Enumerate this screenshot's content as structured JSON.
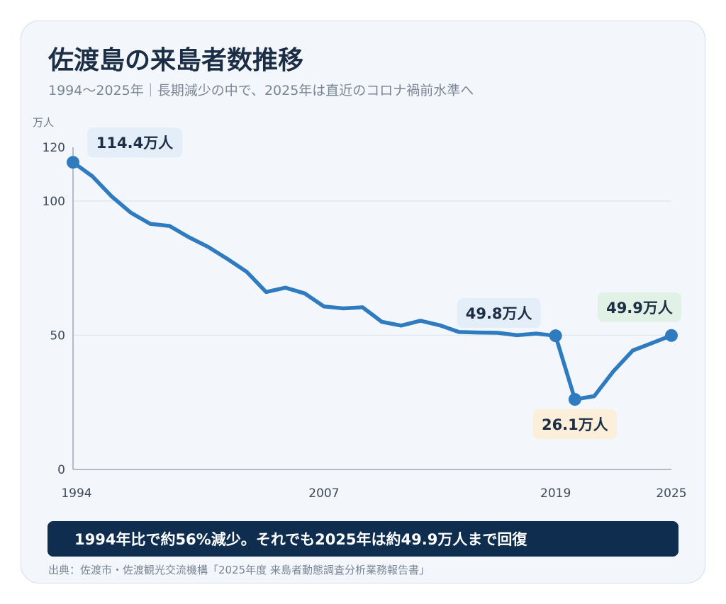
{
  "title": "佐渡島の来島者数推移",
  "subtitle": "1994〜2025年｜長期減少の中で、2025年は直近のコロナ禍前水準へ",
  "banner": "1994年比で約56%減少。それでも2025年は約49.9万人まで回復",
  "source": "出典：佐渡市・佐渡観光交流機構「2025年度 来島者動態調査分析業務報告書」",
  "colors": {
    "line": "#2f7bbf",
    "axis": "#9aa8b8",
    "grid": "#dde4ec",
    "banner_bg": "#0f2d4f",
    "callout_blue": "#e3eef8",
    "callout_orange": "#fcefd9",
    "callout_green": "#e2f1e6"
  },
  "chart_data": {
    "type": "line",
    "ylabel": "万人",
    "ylim": [
      0,
      120
    ],
    "yticks": [
      0,
      50,
      100,
      120
    ],
    "xlim": [
      1994,
      2025
    ],
    "xticks": [
      1994,
      2007,
      2019,
      2025
    ],
    "grid": true,
    "x": [
      1994,
      1995,
      1996,
      1997,
      1998,
      1999,
      2000,
      2001,
      2002,
      2003,
      2004,
      2005,
      2006,
      2007,
      2008,
      2009,
      2010,
      2011,
      2012,
      2013,
      2014,
      2015,
      2016,
      2017,
      2018,
      2019,
      2020,
      2021,
      2022,
      2023,
      2024,
      2025
    ],
    "values": [
      114.4,
      109.2,
      101.7,
      95.6,
      91.5,
      90.7,
      86.5,
      82.9,
      78.4,
      73.6,
      66.1,
      67.7,
      65.6,
      60.7,
      60.0,
      60.4,
      55.0,
      53.6,
      55.4,
      53.7,
      51.2,
      51.0,
      50.9,
      50.0,
      50.6,
      49.8,
      26.1,
      27.3,
      36.6,
      44.3,
      47.1,
      49.9
    ],
    "annotations": [
      {
        "x": 1994,
        "label": "114.4万人",
        "style": "blue"
      },
      {
        "x": 2019,
        "label": "49.8万人",
        "style": "blue"
      },
      {
        "x": 2020,
        "label": "26.1万人",
        "style": "orange"
      },
      {
        "x": 2025,
        "label": "49.9万人",
        "style": "green"
      }
    ]
  }
}
